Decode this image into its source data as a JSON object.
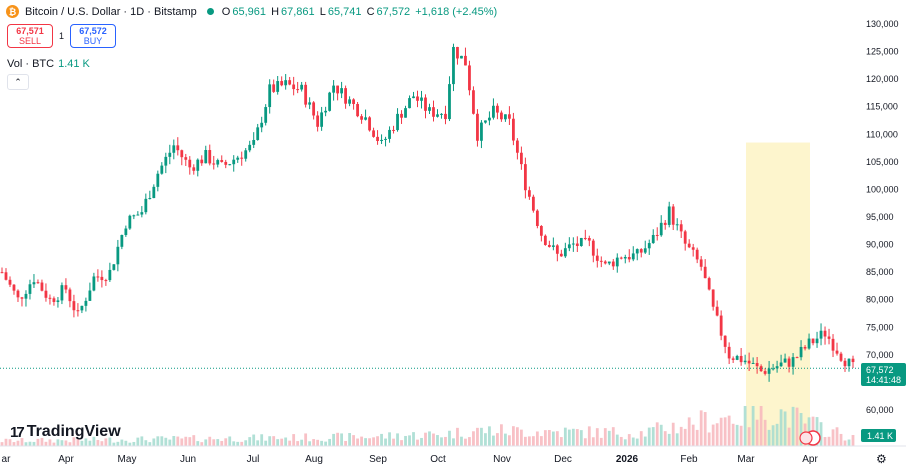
{
  "header": {
    "coin_icon": "bitcoin-icon",
    "coin_glyph": "₿",
    "symbol_title": "Bitcoin / U.S. Dollar · 1D · Bitstamp",
    "ohlc": {
      "o_label": "O",
      "o": "65,961",
      "h_label": "H",
      "h": "67,861",
      "l_label": "L",
      "l": "65,741",
      "c_label": "C",
      "c": "67,572",
      "change": "+1,618 (+2.45%)"
    }
  },
  "trade": {
    "sell_price": "67,571",
    "sell_label": "SELL",
    "spread": "1",
    "buy_price": "67,572",
    "buy_label": "BUY"
  },
  "volume_legend": {
    "label": "Vol · BTC",
    "value": "1.41 K"
  },
  "collapse_glyph": "⌃",
  "price_axis": {
    "ticks": [
      "130,000",
      "125,000",
      "120,000",
      "115,000",
      "110,000",
      "105,000",
      "100,000",
      "95,000",
      "90,000",
      "85,000",
      "80,000",
      "75,000",
      "70,000",
      "60,000"
    ],
    "current_price": "67,572",
    "countdown": "14:41:48",
    "volume_badge": "1.41 K"
  },
  "time_axis": {
    "labels": [
      "ar",
      "Apr",
      "May",
      "Jun",
      "Jul",
      "Aug",
      "Sep",
      "Oct",
      "Nov",
      "Dec",
      "2026",
      "Feb",
      "Mar",
      "Apr"
    ]
  },
  "logo": {
    "text": "TradingView",
    "mark": "17"
  },
  "settings_icon": "gear-icon",
  "settings_glyph": "⚙",
  "colors": {
    "up": "#089981",
    "down": "#f23645",
    "highlight": "#fdf3c4"
  },
  "chart_data": {
    "type": "candlestick",
    "ylim": [
      56000,
      131000
    ],
    "anchors": [
      [
        0,
        85000
      ],
      [
        4,
        80000
      ],
      [
        8,
        84000
      ],
      [
        12,
        80000
      ],
      [
        16,
        82000
      ],
      [
        19,
        77000
      ],
      [
        23,
        84000
      ],
      [
        27,
        85000
      ],
      [
        31,
        94000
      ],
      [
        35,
        96000
      ],
      [
        39,
        103000
      ],
      [
        43,
        108000
      ],
      [
        47,
        104000
      ],
      [
        51,
        106000
      ],
      [
        55,
        104000
      ],
      [
        59,
        106000
      ],
      [
        63,
        108000
      ],
      [
        67,
        118000
      ],
      [
        71,
        119000
      ],
      [
        75,
        118000
      ],
      [
        79,
        112000
      ],
      [
        83,
        119000
      ],
      [
        87,
        116000
      ],
      [
        91,
        113000
      ],
      [
        95,
        108000
      ],
      [
        99,
        113000
      ],
      [
        103,
        117000
      ],
      [
        107,
        114000
      ],
      [
        111,
        114000
      ],
      [
        113,
        125500
      ],
      [
        116,
        123000
      ],
      [
        119,
        110000
      ],
      [
        123,
        114000
      ],
      [
        127,
        112000
      ],
      [
        131,
        101000
      ],
      [
        135,
        92000
      ],
      [
        139,
        88000
      ],
      [
        143,
        90000
      ],
      [
        147,
        90000
      ],
      [
        151,
        86000
      ],
      [
        155,
        88000
      ],
      [
        159,
        88000
      ],
      [
        163,
        91000
      ],
      [
        167,
        96000
      ],
      [
        171,
        90000
      ],
      [
        175,
        86000
      ],
      [
        178,
        78000
      ],
      [
        182,
        70000
      ],
      [
        186,
        69000
      ],
      [
        190,
        67000
      ],
      [
        194,
        68000
      ],
      [
        198,
        69000
      ],
      [
        202,
        72000
      ],
      [
        206,
        74000
      ],
      [
        210,
        70000
      ],
      [
        213,
        67500
      ]
    ],
    "volume_anchors": [
      [
        0,
        4
      ],
      [
        30,
        5
      ],
      [
        60,
        6
      ],
      [
        90,
        7
      ],
      [
        110,
        9
      ],
      [
        120,
        12
      ],
      [
        160,
        10
      ],
      [
        180,
        22
      ],
      [
        195,
        25
      ],
      [
        213,
        6
      ]
    ]
  }
}
